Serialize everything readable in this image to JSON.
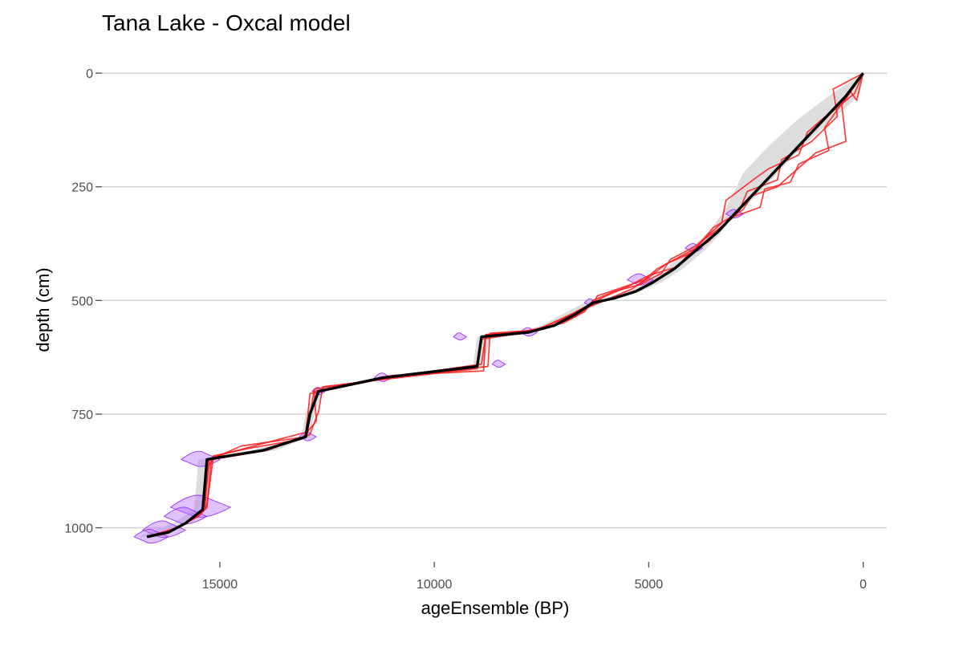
{
  "chart_data": {
    "type": "line",
    "title": "Tana Lake - Oxcal model",
    "xlabel": "ageEnsemble (BP)",
    "ylabel": "depth (cm)",
    "x_reversed": true,
    "y_reversed": true,
    "xlim": [
      17750,
      -550
    ],
    "ylim": [
      -55,
      1075
    ],
    "x_ticks": [
      15000,
      10000,
      5000,
      0
    ],
    "y_ticks": [
      0,
      250,
      500,
      750,
      1000
    ],
    "grid": "horizontal major gridlines",
    "legend": "none",
    "colors": {
      "median": "#000000",
      "ensemble": "#ff1a1a",
      "ribbon": "#d9d9d9",
      "dates": "#b266ff"
    },
    "series": [
      {
        "role": "median",
        "x": [
          0,
          400,
          900,
          1500,
          2100,
          2700,
          3000,
          3400,
          3900,
          4400,
          4900,
          5300,
          5800,
          6300,
          6700,
          7200,
          7800,
          8900,
          9000,
          11200,
          12700,
          12900,
          13000,
          14000,
          15000,
          15300,
          15400,
          15600,
          15800,
          16200,
          16700
        ],
        "y": [
          0,
          50,
          100,
          160,
          220,
          280,
          310,
          350,
          390,
          430,
          460,
          480,
          495,
          505,
          530,
          555,
          570,
          580,
          645,
          670,
          700,
          750,
          800,
          830,
          845,
          850,
          960,
          975,
          990,
          1010,
          1020
        ]
      },
      {
        "role": "ensemble",
        "x": [
          0,
          150,
          300,
          900,
          800,
          1500,
          1700,
          2300,
          2400,
          3000,
          3400,
          3700,
          4000,
          4600,
          5000,
          5400,
          5900,
          6400,
          6800,
          7400,
          7800,
          8800,
          8900,
          11100,
          12800,
          12900,
          13000,
          14500,
          15100,
          15250,
          15400,
          15700,
          16100,
          16700
        ],
        "y": [
          0,
          60,
          40,
          120,
          170,
          200,
          240,
          255,
          295,
          315,
          345,
          365,
          395,
          420,
          450,
          475,
          495,
          515,
          540,
          560,
          570,
          575,
          640,
          670,
          695,
          760,
          800,
          820,
          845,
          860,
          965,
          985,
          1005,
          1020
        ]
      },
      {
        "role": "ensemble",
        "x": [
          0,
          700,
          600,
          1200,
          1900,
          2000,
          2700,
          2900,
          3100,
          3600,
          4100,
          4300,
          5000,
          5500,
          6000,
          6400,
          7100,
          7800,
          8900,
          9000,
          11300,
          12600,
          12700,
          12900,
          13900,
          15200,
          15300,
          15500,
          15900,
          16400,
          16700
        ],
        "y": [
          0,
          35,
          95,
          150,
          190,
          235,
          260,
          305,
          320,
          370,
          400,
          425,
          445,
          470,
          490,
          510,
          545,
          570,
          585,
          650,
          675,
          690,
          745,
          795,
          830,
          850,
          955,
          975,
          995,
          1015,
          1020
        ]
      },
      {
        "role": "ensemble",
        "x": [
          0,
          200,
          1000,
          1300,
          1500,
          2200,
          2500,
          3200,
          3300,
          3900,
          4500,
          4700,
          5200,
          5800,
          6300,
          6500,
          7000,
          7900,
          8800,
          8850,
          11000,
          12800,
          12750,
          13100,
          14300,
          15150,
          15300,
          15450,
          15800,
          16300,
          16700
        ],
        "y": [
          0,
          45,
          105,
          130,
          180,
          210,
          230,
          280,
          330,
          380,
          410,
          440,
          465,
          480,
          500,
          525,
          550,
          568,
          575,
          655,
          665,
          700,
          765,
          805,
          825,
          842,
          950,
          965,
          990,
          1012,
          1020
        ]
      },
      {
        "role": "ensemble",
        "x": [
          0,
          500,
          400,
          1100,
          2000,
          2600,
          2800,
          3500,
          3900,
          4800,
          5100,
          6200,
          6300,
          7600,
          8700,
          8750,
          11200,
          12900,
          12950,
          13000,
          14800,
          15250,
          15350,
          15650,
          16000,
          16700
        ],
        "y": [
          0,
          70,
          150,
          175,
          250,
          270,
          300,
          340,
          385,
          430,
          455,
          490,
          508,
          565,
          572,
          645,
          672,
          705,
          755,
          790,
          835,
          848,
          958,
          980,
          1000,
          1020
        ]
      }
    ],
    "ribbon": {
      "role": "uncertainty",
      "x_min": [
        0,
        100,
        700,
        1400,
        2000,
        2600,
        3000,
        3300,
        3700,
        4200,
        4700,
        5200,
        5700,
        6200,
        6700,
        7200,
        7800,
        8700,
        8850,
        11000,
        12600,
        12800,
        12900,
        13700,
        15000,
        15200,
        15300,
        15550,
        15800,
        16500
      ],
      "x_max": [
        0,
        800,
        1500,
        2200,
        2800,
        3100,
        3300,
        3600,
        4100,
        4600,
        5100,
        5500,
        6000,
        6500,
        7000,
        7500,
        8000,
        9000,
        9100,
        11300,
        12800,
        13000,
        13100,
        14300,
        15200,
        15500,
        15600,
        15850,
        16100,
        16900
      ],
      "y": [
        0,
        50,
        100,
        160,
        220,
        280,
        310,
        350,
        390,
        430,
        460,
        480,
        495,
        505,
        530,
        555,
        570,
        580,
        645,
        670,
        700,
        750,
        800,
        830,
        845,
        850,
        960,
        975,
        990,
        1020
      ]
    },
    "date_distributions": {
      "role": "calibrated dates",
      "x": [
        3000,
        3950,
        5200,
        6350,
        7800,
        9400,
        8500,
        11200,
        12700,
        12950,
        15450,
        15450,
        15800,
        16300,
        16600
      ],
      "y": [
        310,
        385,
        455,
        505,
        570,
        580,
        640,
        670,
        700,
        800,
        850,
        955,
        975,
        1005,
        1020
      ],
      "x_spread": [
        200,
        200,
        300,
        150,
        200,
        150,
        150,
        200,
        150,
        200,
        450,
        700,
        500,
        500,
        400
      ]
    }
  }
}
